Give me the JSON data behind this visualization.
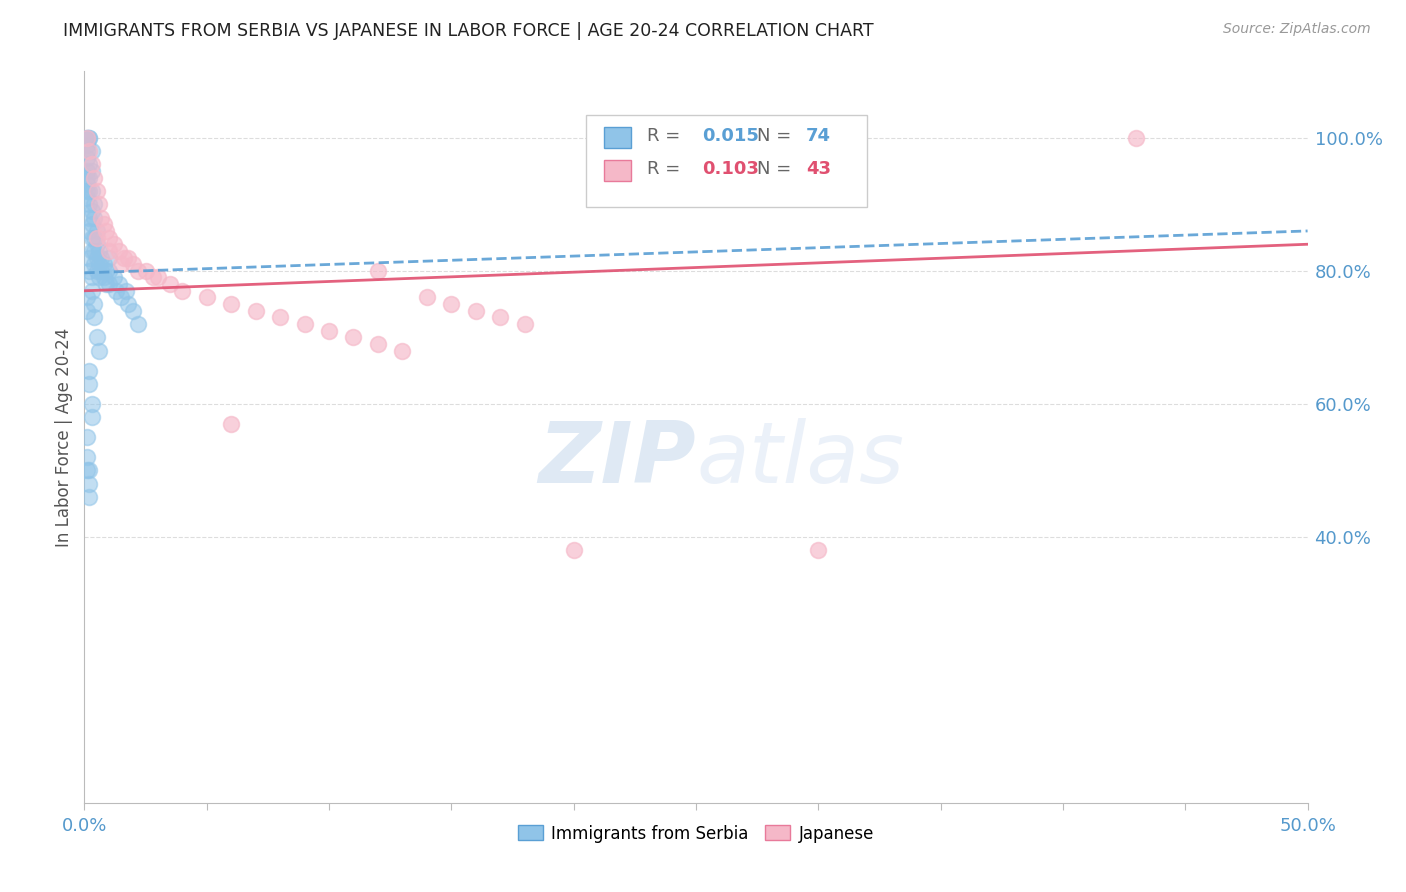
{
  "title": "IMMIGRANTS FROM SERBIA VS JAPANESE IN LABOR FORCE | AGE 20-24 CORRELATION CHART",
  "source": "Source: ZipAtlas.com",
  "ylabel": "In Labor Force | Age 20-24",
  "xlim": [
    0.0,
    0.5
  ],
  "ylim": [
    0.0,
    1.1
  ],
  "xticks": [
    0.0,
    0.05,
    0.1,
    0.15,
    0.2,
    0.25,
    0.3,
    0.35,
    0.4,
    0.45,
    0.5
  ],
  "xticklabels": [
    "0.0%",
    "",
    "",
    "",
    "",
    "",
    "",
    "",
    "",
    "",
    "50.0%"
  ],
  "yticks_right": [
    0.4,
    0.6,
    0.8,
    1.0
  ],
  "yticklabels_right": [
    "40.0%",
    "60.0%",
    "80.0%",
    "100.0%"
  ],
  "watermark_zip": "ZIP",
  "watermark_atlas": "atlas",
  "blue_scatter_color": "#90c4e8",
  "blue_edge_color": "#5a9fd4",
  "pink_scatter_color": "#f5b8c8",
  "pink_edge_color": "#e87a9a",
  "blue_line_color": "#5a9fd4",
  "pink_line_color": "#e05070",
  "axis_color": "#5599cc",
  "title_color": "#222222",
  "source_color": "#999999",
  "grid_color": "#dddddd",
  "serbia_x": [
    0.001,
    0.001,
    0.001,
    0.001,
    0.001,
    0.001,
    0.001,
    0.001,
    0.001,
    0.001,
    0.002,
    0.002,
    0.002,
    0.002,
    0.002,
    0.002,
    0.002,
    0.002,
    0.003,
    0.003,
    0.003,
    0.003,
    0.003,
    0.003,
    0.003,
    0.004,
    0.004,
    0.004,
    0.004,
    0.004,
    0.005,
    0.005,
    0.005,
    0.005,
    0.006,
    0.006,
    0.006,
    0.007,
    0.007,
    0.008,
    0.008,
    0.009,
    0.009,
    0.01,
    0.01,
    0.01,
    0.012,
    0.013,
    0.014,
    0.015,
    0.017,
    0.018,
    0.02,
    0.022,
    0.001,
    0.001,
    0.002,
    0.002,
    0.003,
    0.003,
    0.004,
    0.004,
    0.005,
    0.006,
    0.002,
    0.002,
    0.003,
    0.003,
    0.001,
    0.001,
    0.001,
    0.002,
    0.002,
    0.002
  ],
  "serbia_y": [
    1.0,
    1.0,
    0.99,
    0.98,
    0.97,
    0.95,
    0.94,
    0.93,
    0.92,
    0.91,
    1.0,
    1.0,
    0.96,
    0.94,
    0.92,
    0.9,
    0.88,
    0.86,
    0.98,
    0.95,
    0.92,
    0.89,
    0.87,
    0.85,
    0.83,
    0.9,
    0.88,
    0.85,
    0.83,
    0.81,
    0.86,
    0.84,
    0.82,
    0.8,
    0.83,
    0.81,
    0.79,
    0.82,
    0.8,
    0.81,
    0.79,
    0.8,
    0.78,
    0.82,
    0.8,
    0.78,
    0.79,
    0.77,
    0.78,
    0.76,
    0.77,
    0.75,
    0.74,
    0.72,
    0.76,
    0.74,
    0.82,
    0.8,
    0.79,
    0.77,
    0.75,
    0.73,
    0.7,
    0.68,
    0.65,
    0.63,
    0.6,
    0.58,
    0.55,
    0.52,
    0.5,
    0.5,
    0.48,
    0.46
  ],
  "japanese_x": [
    0.001,
    0.002,
    0.003,
    0.004,
    0.005,
    0.006,
    0.007,
    0.008,
    0.009,
    0.01,
    0.012,
    0.014,
    0.016,
    0.018,
    0.02,
    0.022,
    0.025,
    0.028,
    0.03,
    0.035,
    0.04,
    0.05,
    0.06,
    0.07,
    0.08,
    0.09,
    0.1,
    0.11,
    0.12,
    0.13,
    0.14,
    0.15,
    0.16,
    0.17,
    0.18,
    0.005,
    0.01,
    0.015,
    0.06,
    0.12,
    0.2,
    0.3,
    0.43
  ],
  "japanese_y": [
    1.0,
    0.98,
    0.96,
    0.94,
    0.92,
    0.9,
    0.88,
    0.87,
    0.86,
    0.85,
    0.84,
    0.83,
    0.82,
    0.82,
    0.81,
    0.8,
    0.8,
    0.79,
    0.79,
    0.78,
    0.77,
    0.76,
    0.75,
    0.74,
    0.73,
    0.72,
    0.71,
    0.7,
    0.69,
    0.68,
    0.76,
    0.75,
    0.74,
    0.73,
    0.72,
    0.85,
    0.83,
    0.81,
    0.57,
    0.8,
    0.38,
    0.38,
    1.0
  ],
  "serbia_trendline_x": [
    0.0,
    0.5
  ],
  "serbia_trendline_y": [
    0.797,
    0.86
  ],
  "japanese_trendline_x": [
    0.0,
    0.5
  ],
  "japanese_trendline_y": [
    0.77,
    0.84
  ]
}
